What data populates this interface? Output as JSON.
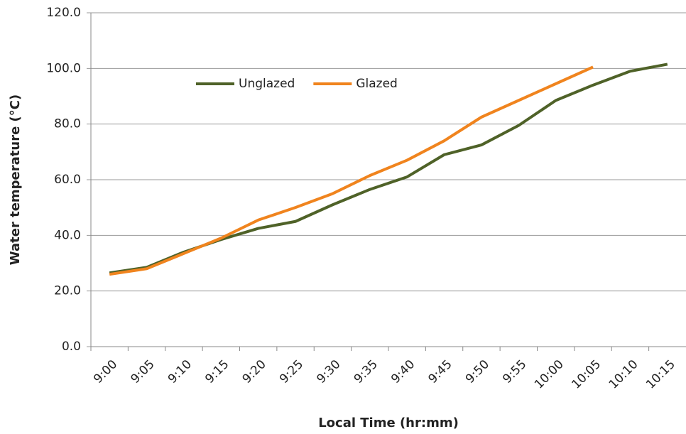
{
  "chart_data": {
    "type": "line",
    "x_label": "Local Time (hr:mm)",
    "y_label": "Water temperature (°C)",
    "categories": [
      "9:00",
      "9:05",
      "9:10",
      "9:15",
      "9:20",
      "9:25",
      "9:30",
      "9:35",
      "9:40",
      "9:45",
      "9:50",
      "9:55",
      "10:00",
      "10:05",
      "10:10",
      "10:15"
    ],
    "series": [
      {
        "name": "Unglazed",
        "color": "#4f6228",
        "values": [
          26.5,
          28.5,
          34,
          38.5,
          42.5,
          45,
          51,
          56.5,
          61,
          69,
          72.5,
          79.5,
          88.5,
          94,
          99,
          101.5
        ]
      },
      {
        "name": "Glazed",
        "color": "#f0841e",
        "values": [
          26,
          28,
          33.5,
          39,
          45.5,
          50,
          55,
          61.5,
          67,
          74,
          82.5,
          88.5,
          94.5,
          100.5,
          null,
          null
        ]
      }
    ],
    "ylim": [
      0,
      120
    ],
    "yticks": [
      {
        "value": 0,
        "label": "0.0"
      },
      {
        "value": 20,
        "label": "20.0"
      },
      {
        "value": 40,
        "label": "40.0"
      },
      {
        "value": 60,
        "label": "60.0"
      },
      {
        "value": 80,
        "label": "80.0"
      },
      {
        "value": 100,
        "label": "100.0"
      },
      {
        "value": 120,
        "label": "120.0"
      }
    ],
    "grid": true,
    "legend": "top-left"
  }
}
